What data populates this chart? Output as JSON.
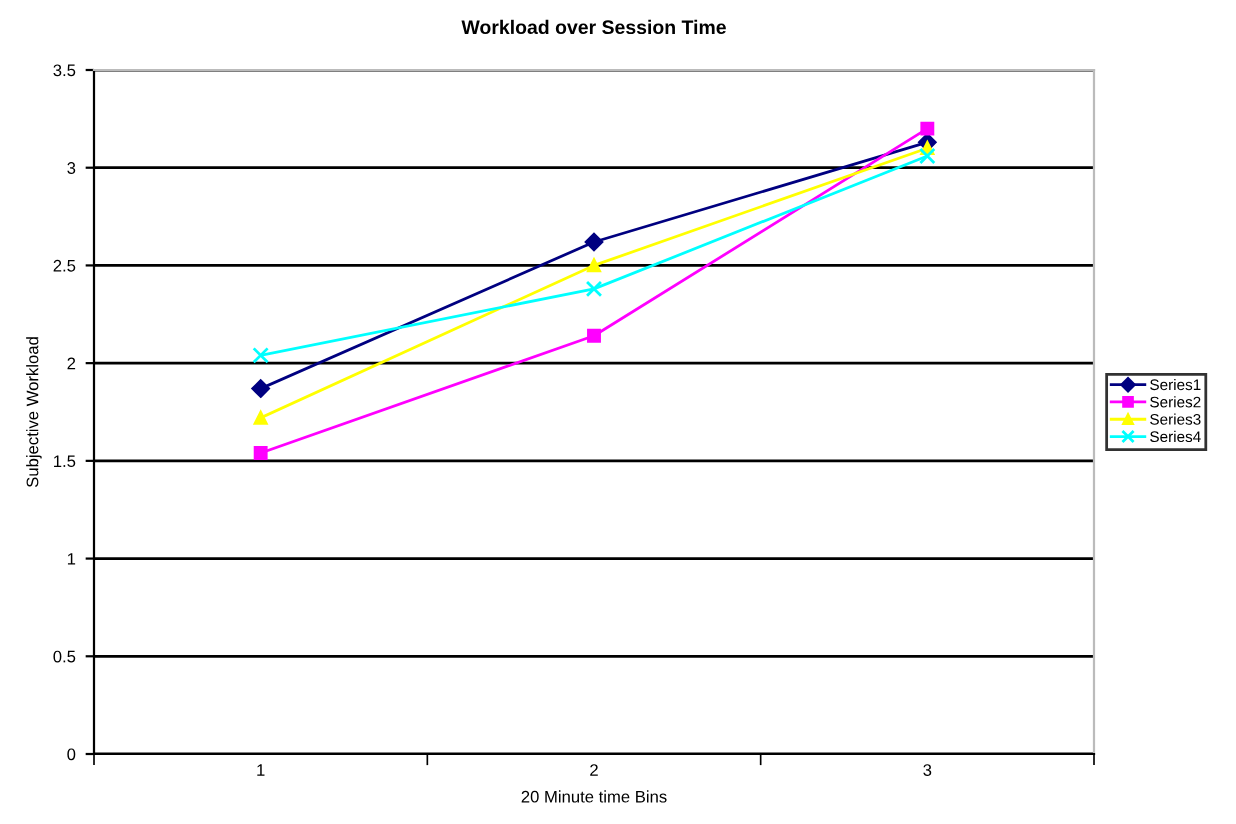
{
  "chart_data": {
    "type": "line",
    "title": "Workload over Session Time",
    "xlabel": "20 Minute time Bins",
    "ylabel": "Subjective Workload",
    "categories": [
      "1",
      "2",
      "3"
    ],
    "series": [
      {
        "name": "Series1",
        "color": "#000080",
        "marker": "diamond",
        "values": [
          1.87,
          2.62,
          3.13
        ]
      },
      {
        "name": "Series2",
        "color": "#ff00ff",
        "marker": "square",
        "values": [
          1.54,
          2.14,
          3.2
        ]
      },
      {
        "name": "Series3",
        "color": "#ffff00",
        "marker": "triangle",
        "values": [
          1.72,
          2.5,
          3.1
        ]
      },
      {
        "name": "Series4",
        "color": "#00ffff",
        "marker": "cross",
        "values": [
          2.04,
          2.38,
          3.06
        ]
      }
    ],
    "ylim": [
      0,
      3.5
    ],
    "yticks": [
      0,
      0.5,
      1,
      1.5,
      2,
      2.5,
      3,
      3.5
    ],
    "grid": "y",
    "legend": "right",
    "line_style": "solid"
  }
}
